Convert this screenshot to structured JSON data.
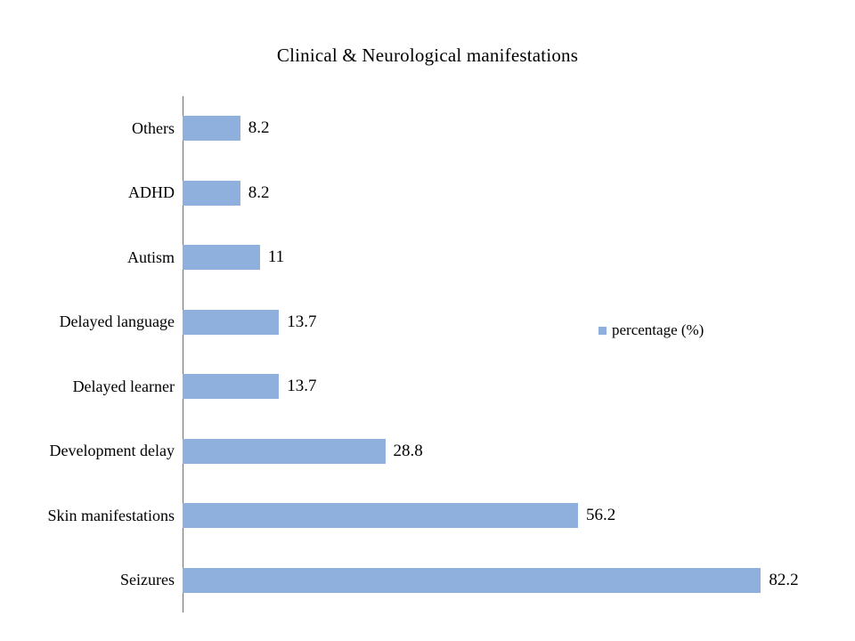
{
  "title": "Clinical & Neurological manifestations",
  "legend": {
    "label": "percentage (%)"
  },
  "colors": {
    "bar": "#8fafdc",
    "axis": "#6e6e6e",
    "text": "#000000",
    "background": "#ffffff"
  },
  "chart_data": {
    "type": "bar",
    "orientation": "horizontal",
    "title": "Clinical & Neurological manifestations",
    "categories": [
      "Others",
      "ADHD",
      "Autism",
      "Delayed language",
      "Delayed learner",
      "Development delay",
      "Skin manifestations",
      "Seizures"
    ],
    "series": [
      {
        "name": "percentage (%)",
        "values": [
          8.2,
          8.2,
          11,
          13.7,
          13.7,
          28.8,
          56.2,
          82.2
        ],
        "data_labels": [
          "8.2",
          "8.2",
          "11",
          "13.7",
          "13.7",
          "28.8",
          "56.2",
          "82.2"
        ]
      }
    ],
    "xlabel": "",
    "ylabel": "",
    "xlim": [
      0,
      90
    ],
    "grid": false,
    "data_labels_shown": true,
    "legend_position": "right-middle"
  }
}
